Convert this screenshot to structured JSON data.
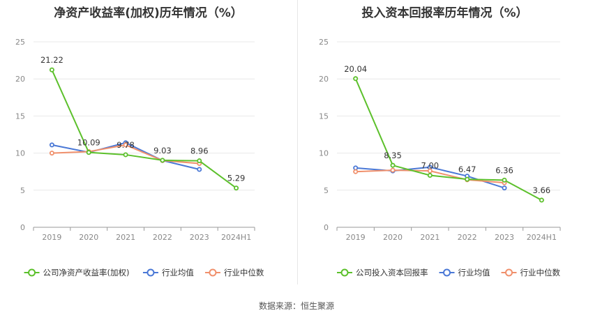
{
  "source_label": "数据来源：恒生聚源",
  "chart_data": [
    {
      "type": "line",
      "title": "净资产收益率(加权)历年情况（%）",
      "categories": [
        "2019",
        "2020",
        "2021",
        "2022",
        "2023",
        "2024H1"
      ],
      "ylim": [
        0,
        25
      ],
      "yticks": [
        0,
        5,
        10,
        15,
        20,
        25
      ],
      "grid": true,
      "legend_position": "bottom",
      "series": [
        {
          "name": "公司净资产收益率(加权)",
          "color": "#5cc02b",
          "values": [
            21.22,
            10.09,
            9.78,
            9.03,
            8.96,
            5.29
          ],
          "labels": [
            "21.22",
            "10.09",
            "9.78",
            "9.03",
            "8.96",
            "5.29"
          ]
        },
        {
          "name": "行业均值",
          "color": "#4a78d6",
          "values": [
            11.1,
            10.1,
            11.4,
            9.0,
            7.8,
            null
          ]
        },
        {
          "name": "行业中位数",
          "color": "#f0906c",
          "values": [
            10.0,
            10.2,
            11.1,
            9.0,
            8.6,
            null
          ]
        }
      ]
    },
    {
      "type": "line",
      "title": "投入资本回报率历年情况（%）",
      "categories": [
        "2019",
        "2020",
        "2021",
        "2022",
        "2023",
        "2024H1"
      ],
      "ylim": [
        0,
        25
      ],
      "yticks": [
        0,
        5,
        10,
        15,
        20,
        25
      ],
      "grid": true,
      "legend_position": "bottom",
      "series": [
        {
          "name": "公司投入资本回报率",
          "color": "#5cc02b",
          "values": [
            20.04,
            8.35,
            7.0,
            6.47,
            6.36,
            3.66
          ],
          "labels": [
            "20.04",
            "8.35",
            "7.00",
            "6.47",
            "6.36",
            "3.66"
          ]
        },
        {
          "name": "行业均值",
          "color": "#4a78d6",
          "values": [
            8.0,
            7.6,
            8.1,
            6.9,
            5.3,
            null
          ]
        },
        {
          "name": "行业中位数",
          "color": "#f0906c",
          "values": [
            7.5,
            7.7,
            7.6,
            6.4,
            6.0,
            null
          ]
        }
      ]
    }
  ]
}
